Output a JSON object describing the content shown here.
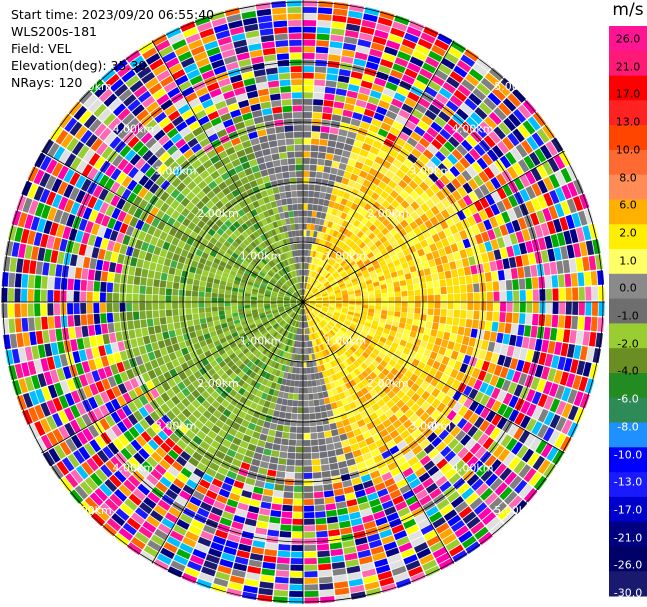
{
  "header": {
    "start_time": "Start time: 2023/09/20 06:55:40",
    "station": "WLS200s-181",
    "field": "Field: VEL",
    "elevation": "Elevation(deg): 35.30",
    "nrays": "NRays: 120"
  },
  "colorbar": {
    "unit": "m/s",
    "ticks": [
      "26.0",
      "21.0",
      "17.0",
      "13.0",
      "10.0",
      "8.0",
      "6.0",
      "2.0",
      "1.0",
      "0.0",
      "-1.0",
      "-2.0",
      "-4.0",
      "-6.0",
      "-8.0",
      "-10.0",
      "-13.0",
      "-17.0",
      "-21.0",
      "-26.0",
      "-30.0"
    ],
    "colors": [
      "#ff1493",
      "#ff1a75",
      "#ff0000",
      "#ff2222",
      "#ff4500",
      "#ff6a33",
      "#ff8c57",
      "#ffb000",
      "#ffee00",
      "#ffff66",
      "#8a8a8a",
      "#6e6e6e",
      "#9acd32",
      "#6b8e23",
      "#228b22",
      "#2e8b57",
      "#1e90ff",
      "#0000ff",
      "#1a1aff",
      "#0000cd",
      "#000080",
      "#000066",
      "#191970"
    ]
  },
  "range_labels": [
    "1.00km",
    "2.00km",
    "3.00km",
    "4.00km",
    "5.00km"
  ],
  "colors": {
    "pos_core": [
      "#ffff33",
      "#ffd700",
      "#ffe000",
      "#ffee44"
    ],
    "pos_edge": [
      "#ffa500",
      "#ffb000",
      "#ff9900"
    ],
    "neg_core": [
      "#9acd32",
      "#6b8e23",
      "#8fbc2f",
      "#7aa82a"
    ],
    "neg_edge": [
      "#228b22",
      "#3cb043"
    ],
    "zero": [
      "#707070",
      "#8a8a8a",
      "#6e6e78"
    ],
    "noise": [
      "#ff1493",
      "#ff00aa",
      "#0000ff",
      "#1a1aff",
      "#000080",
      "#ffff00",
      "#ff0000",
      "#ff6600",
      "#00aa00",
      "#9acd32",
      "#ff69b4",
      "#191970",
      "#00bfff",
      "#ffa500",
      "#808080",
      "#e0e0e0"
    ]
  }
}
